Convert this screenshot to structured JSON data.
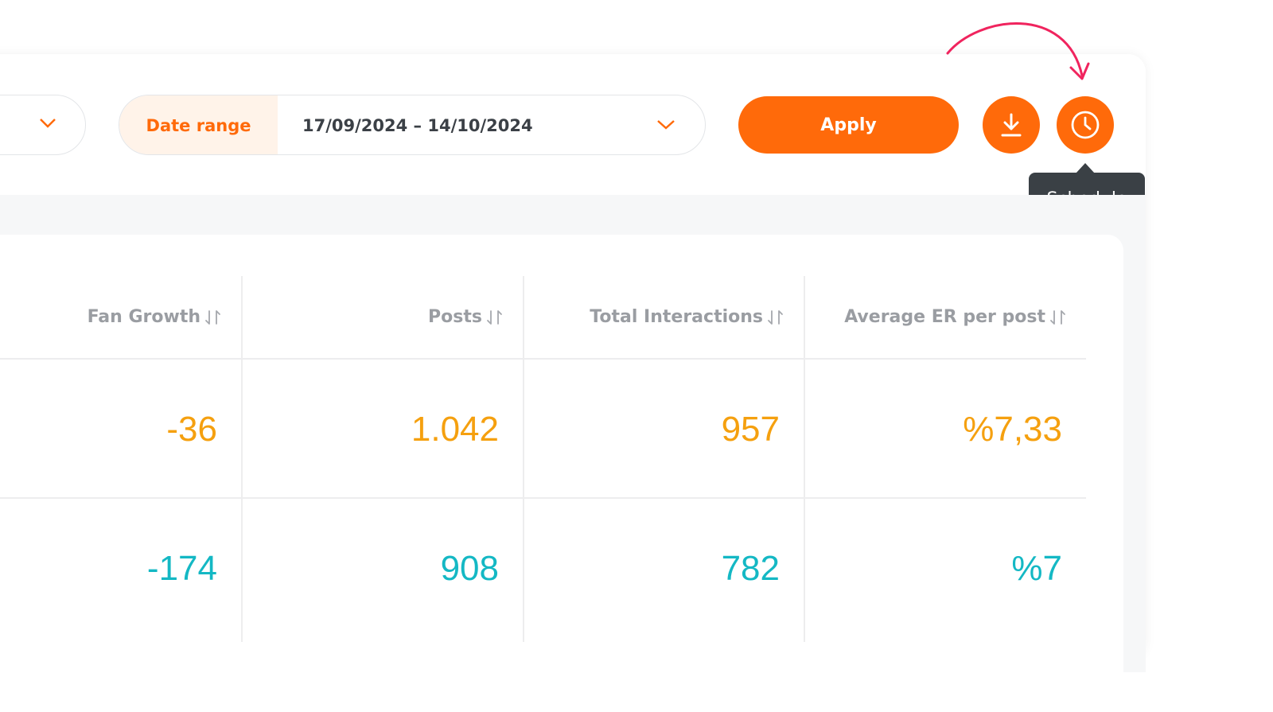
{
  "filters": {
    "date_range_label": "Date range",
    "date_range_value": "17/09/2024 – 14/10/2024",
    "apply": "Apply",
    "tooltip": "Schedule"
  },
  "table": {
    "headers": [
      "Fan Growth",
      "Posts",
      "Total Interactions",
      "Average ER per post"
    ],
    "rows": [
      [
        "-36",
        "1.042",
        "957",
        "%7,33"
      ],
      [
        "-174",
        "908",
        "782",
        "%7"
      ]
    ]
  }
}
